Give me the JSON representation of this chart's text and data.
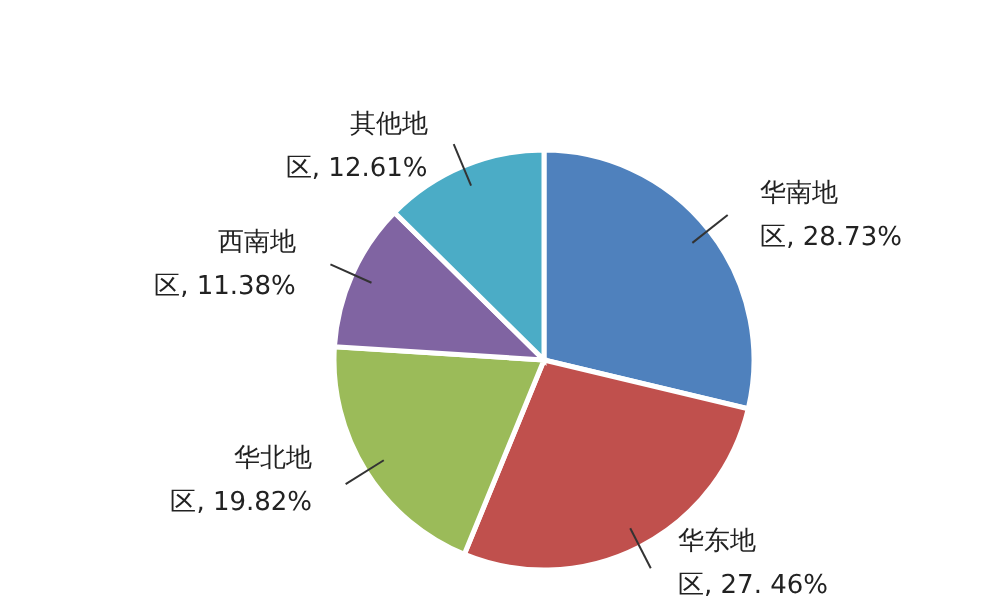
{
  "chart_data": {
    "type": "pie",
    "categories": [
      "华南地区",
      "华东地区",
      "华北地区",
      "西南地区",
      "其他地区"
    ],
    "values": [
      28.73,
      27.46,
      19.82,
      11.38,
      12.61
    ],
    "value_labels": [
      "28.73%",
      "27. 46%",
      "19.82%",
      "11.38%",
      "12.61%"
    ],
    "colors": [
      "#4f81bd",
      "#c0504d",
      "#9bbb59",
      "#8064a2",
      "#4bacc6"
    ]
  }
}
